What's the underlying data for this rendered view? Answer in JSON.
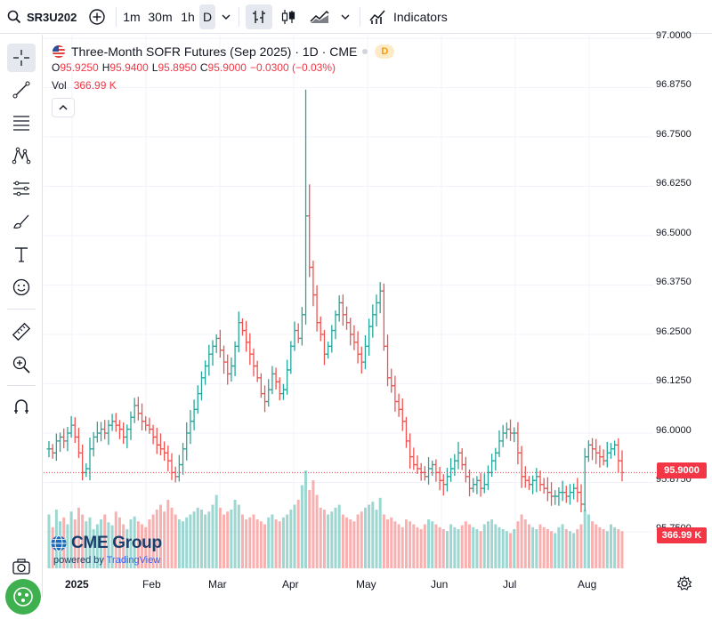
{
  "toolbar": {
    "symbol": "SR3U202",
    "intervals": [
      "1m",
      "30m",
      "1h",
      "D"
    ],
    "indicators_label": "Indicators"
  },
  "legend": {
    "title": "Three-Month SOFR Futures (Sep 2025) · 1D · CME",
    "badge": "D",
    "o_label": "O",
    "o_value": "95.9250",
    "h_label": "H",
    "h_value": "95.9400",
    "l_label": "L",
    "l_value": "95.8950",
    "c_label": "C",
    "c_value": "95.9000",
    "change": "−0.0300 (−0.03%)",
    "vol_label": "Vol",
    "vol_value": "366.99 K"
  },
  "price_axis": [
    "97.0000",
    "96.8750",
    "96.7500",
    "96.6250",
    "96.5000",
    "96.3750",
    "96.2500",
    "96.1250",
    "96.0000",
    "95.8750",
    "95.7500"
  ],
  "last_price": "95.9000",
  "last_volume": "366.99 K",
  "time_axis": [
    "2025",
    "Feb",
    "Mar",
    "Apr",
    "May",
    "Jun",
    "Jul",
    "Aug"
  ],
  "branding": {
    "cme": "CME Group",
    "powered_prefix": "powered by",
    "powered_brand": "TradingView"
  },
  "colors": {
    "up": "#26a69a",
    "down": "#ef5350",
    "accent": "#2962ff",
    "price_tag": "#f23645"
  },
  "chart_data": {
    "type": "ohlc",
    "series": [
      {
        "name": "Three-Month SOFR Futures (Sep 2025)",
        "interval": "1D"
      }
    ],
    "x_labels": [
      "2025",
      "Feb",
      "Mar",
      "Apr",
      "May",
      "Jun",
      "Jul",
      "Aug"
    ],
    "ylim": [
      95.75,
      97.0
    ],
    "last": {
      "open": 95.925,
      "high": 95.94,
      "low": 95.895,
      "close": 95.9,
      "volume_k": 366.99
    },
    "close": [
      95.96,
      95.95,
      95.98,
      95.99,
      95.98,
      96.0,
      96.02,
      95.99,
      95.95,
      95.9,
      95.91,
      95.96,
      95.99,
      96.0,
      96.01,
      96.0,
      96.02,
      96.03,
      96.02,
      96.01,
      95.99,
      96.01,
      96.04,
      96.07,
      96.05,
      96.03,
      96.02,
      96.01,
      95.99,
      95.97,
      95.96,
      95.95,
      95.93,
      95.9,
      95.89,
      95.92,
      95.96,
      96.0,
      96.03,
      96.06,
      96.1,
      96.14,
      96.17,
      96.2,
      96.22,
      96.24,
      96.21,
      96.18,
      96.15,
      96.17,
      96.22,
      96.28,
      96.26,
      96.23,
      96.2,
      96.17,
      96.14,
      96.1,
      96.08,
      96.11,
      96.15,
      96.13,
      96.1,
      96.11,
      96.16,
      96.22,
      96.26,
      96.24,
      96.3,
      96.55,
      96.42,
      96.35,
      96.28,
      96.25,
      96.2,
      96.22,
      96.26,
      96.3,
      96.33,
      96.3,
      96.28,
      96.25,
      96.23,
      96.2,
      96.18,
      96.22,
      96.27,
      96.3,
      96.33,
      96.36,
      96.22,
      96.14,
      96.12,
      96.08,
      96.06,
      96.03,
      95.98,
      95.94,
      95.92,
      95.91,
      95.9,
      95.89,
      95.91,
      95.92,
      95.9,
      95.88,
      95.87,
      95.89,
      95.91,
      95.93,
      95.95,
      95.92,
      95.89,
      95.86,
      95.87,
      95.88,
      95.86,
      95.87,
      95.9,
      95.93,
      95.95,
      95.98,
      96.0,
      96.01,
      96.0,
      96.0,
      95.95,
      95.89,
      95.88,
      95.87,
      95.88,
      95.89,
      95.87,
      95.86,
      95.85,
      95.84,
      95.84,
      95.85,
      95.85,
      95.84,
      95.85,
      95.86,
      95.85,
      95.82,
      95.94,
      95.97,
      95.96,
      95.95,
      95.94,
      95.93,
      95.95,
      95.96,
      95.97,
      95.93,
      95.9
    ],
    "volume_rel": [
      0.55,
      0.42,
      0.6,
      0.48,
      0.52,
      0.45,
      0.58,
      0.5,
      0.62,
      0.55,
      0.48,
      0.52,
      0.4,
      0.45,
      0.5,
      0.55,
      0.47,
      0.44,
      0.58,
      0.52,
      0.45,
      0.4,
      0.5,
      0.53,
      0.48,
      0.45,
      0.42,
      0.5,
      0.55,
      0.6,
      0.65,
      0.58,
      0.7,
      0.62,
      0.55,
      0.5,
      0.48,
      0.52,
      0.55,
      0.58,
      0.62,
      0.6,
      0.55,
      0.58,
      0.65,
      0.75,
      0.62,
      0.55,
      0.58,
      0.6,
      0.7,
      0.65,
      0.55,
      0.5,
      0.52,
      0.55,
      0.5,
      0.48,
      0.45,
      0.52,
      0.55,
      0.5,
      0.48,
      0.52,
      0.55,
      0.6,
      0.65,
      0.7,
      0.85,
      1.0,
      0.8,
      0.9,
      0.75,
      0.62,
      0.6,
      0.55,
      0.58,
      0.62,
      0.65,
      0.55,
      0.52,
      0.5,
      0.48,
      0.55,
      0.58,
      0.62,
      0.65,
      0.68,
      0.6,
      0.72,
      0.55,
      0.5,
      0.52,
      0.48,
      0.45,
      0.42,
      0.5,
      0.48,
      0.45,
      0.42,
      0.4,
      0.45,
      0.5,
      0.48,
      0.45,
      0.42,
      0.4,
      0.38,
      0.45,
      0.42,
      0.4,
      0.44,
      0.48,
      0.45,
      0.42,
      0.4,
      0.38,
      0.45,
      0.48,
      0.5,
      0.45,
      0.42,
      0.4,
      0.38,
      0.36,
      0.4,
      0.48,
      0.55,
      0.5,
      0.45,
      0.42,
      0.4,
      0.45,
      0.42,
      0.4,
      0.38,
      0.36,
      0.42,
      0.45,
      0.4,
      0.38,
      0.36,
      0.4,
      0.45,
      0.6,
      0.55,
      0.48,
      0.45,
      0.42,
      0.4,
      0.38,
      0.45,
      0.42,
      0.4,
      0.38
    ]
  }
}
